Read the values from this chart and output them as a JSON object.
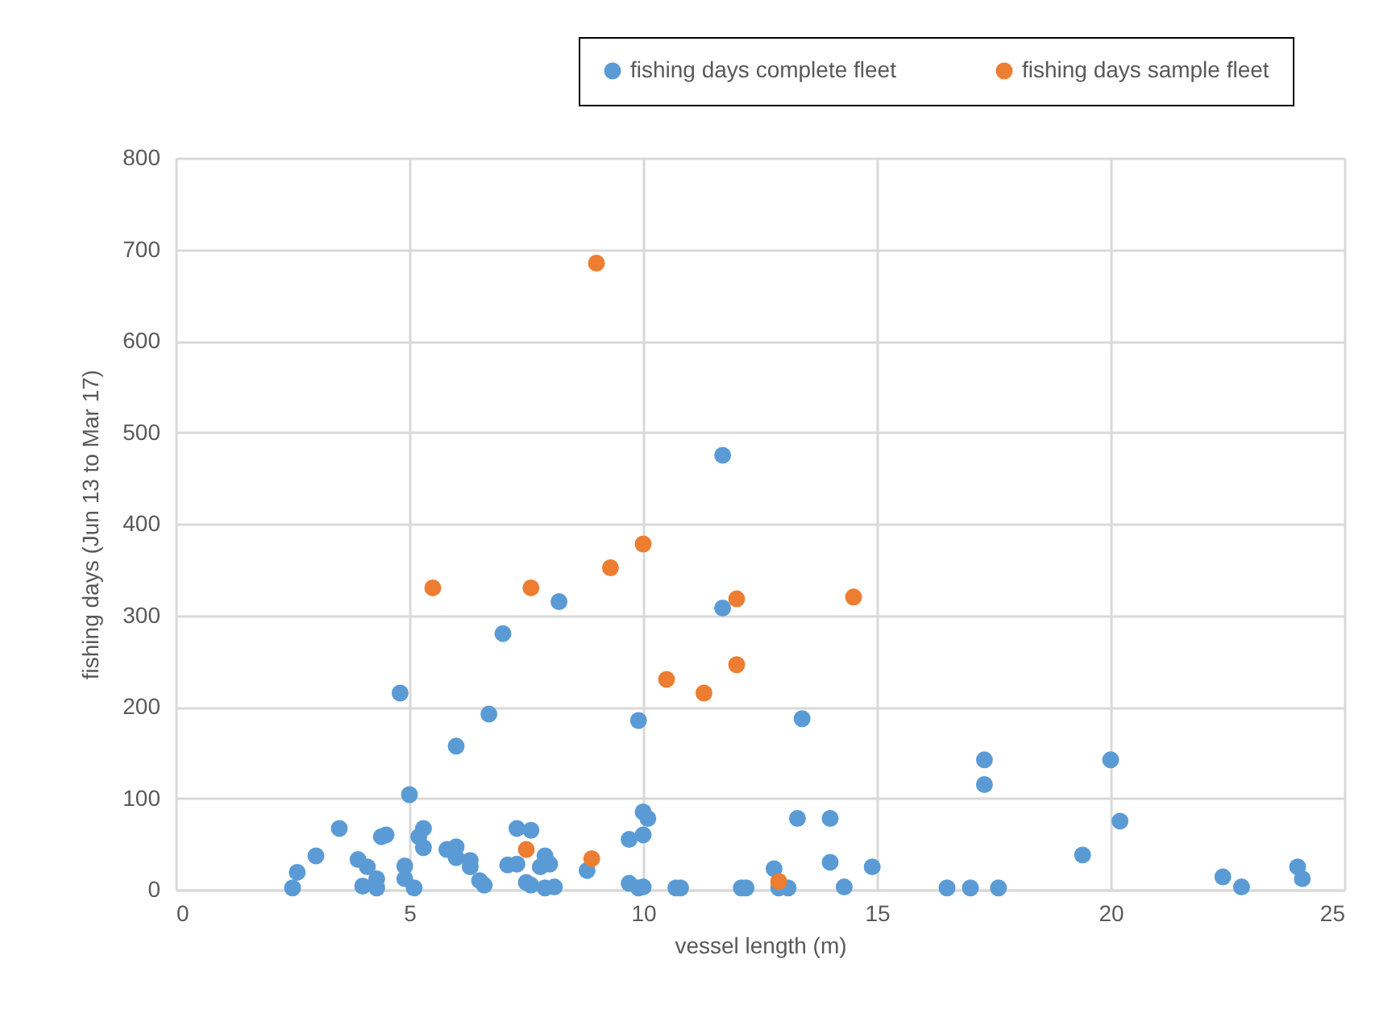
{
  "chart_data": {
    "type": "scatter",
    "xlabel": "vessel length (m)",
    "ylabel": "fishing days (Jun 13 to Mar 17)",
    "xlim": [
      0,
      25
    ],
    "xticks": [
      0,
      5,
      10,
      15,
      20,
      25
    ],
    "ylim": [
      0,
      800
    ],
    "yticks": [
      0,
      100,
      200,
      300,
      400,
      500,
      600,
      700,
      800
    ],
    "grid": true,
    "legend": "top right",
    "marker": "circle",
    "series": [
      {
        "name": "fishing days complete fleet",
        "color": "#5b9bd5",
        "x": [
          2.5,
          2.6,
          3.0,
          3.5,
          3.9,
          4.0,
          4.1,
          4.3,
          4.3,
          4.4,
          4.5,
          4.8,
          4.9,
          4.9,
          5.0,
          5.1,
          5.2,
          5.3,
          5.3,
          6.0,
          6.0,
          5.8,
          6.0,
          6.3,
          6.3,
          6.5,
          6.6,
          6.7,
          7.0,
          7.1,
          7.3,
          7.3,
          7.5,
          7.6,
          7.6,
          7.8,
          7.9,
          7.9,
          8.0,
          8.1,
          8.2,
          8.8,
          9.7,
          9.7,
          9.9,
          9.9,
          10.0,
          10.0,
          10.1,
          10.0,
          10.7,
          10.8,
          11.7,
          11.7,
          12.1,
          12.2,
          12.8,
          12.9,
          13.1,
          13.3,
          13.4,
          14.0,
          14.0,
          14.3,
          14.9,
          16.5,
          17.0,
          17.3,
          17.3,
          17.6,
          19.4,
          20.0,
          20.2,
          22.4,
          22.8,
          24.0,
          24.1
        ],
        "values": [
          2,
          19,
          37,
          67,
          33,
          4,
          25,
          12,
          2,
          58,
          60,
          215,
          12,
          26,
          104,
          2,
          58,
          67,
          46,
          157,
          47,
          44,
          35,
          25,
          32,
          10,
          5,
          192,
          280,
          27,
          28,
          67,
          8,
          65,
          5,
          25,
          2,
          37,
          28,
          3,
          315,
          21,
          55,
          7,
          2,
          185,
          85,
          60,
          78,
          3,
          2,
          2,
          475,
          308,
          2,
          2,
          23,
          2,
          2,
          78,
          187,
          30,
          78,
          3,
          25,
          2,
          2,
          115,
          142,
          2,
          38,
          142,
          75,
          14,
          3,
          25,
          12
        ]
      },
      {
        "name": "fishing days sample fleet",
        "color": "#ed7d31",
        "x": [
          5.5,
          7.6,
          9.0,
          9.3,
          10.0,
          10.5,
          11.3,
          12.0,
          12.0,
          14.5,
          7.5,
          8.9,
          12.9
        ],
        "values": [
          330,
          330,
          685,
          352,
          378,
          230,
          215,
          318,
          246,
          320,
          44,
          34,
          9
        ]
      }
    ]
  }
}
